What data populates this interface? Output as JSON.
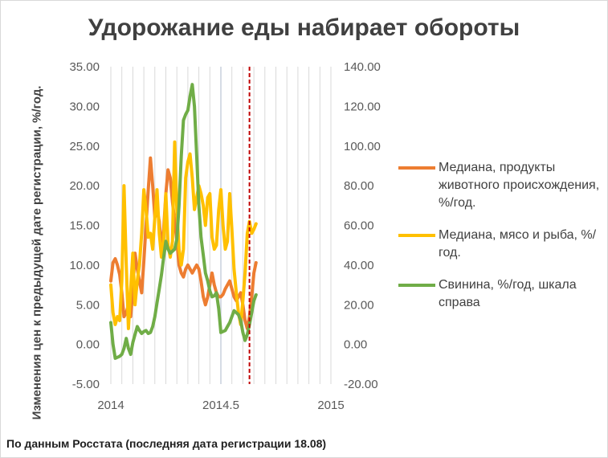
{
  "page": {
    "title": "Удорожание еды набирает обороты",
    "footer": "По данным Росстата (последняя дата регистрации 18.08)"
  },
  "chart_data": {
    "type": "line",
    "title": "Удорожание еды набирает обороты",
    "ylabel": "Изменения цен к предыдущей дате регистрации, %/год.",
    "xlim": [
      2014,
      2015
    ],
    "ylim": [
      -5,
      35
    ],
    "y2lim": [
      -20,
      140
    ],
    "x_ticks": [
      "2014",
      "2014.5",
      "2015"
    ],
    "y_ticks": [
      "-5.00",
      "0.00",
      "5.00",
      "10.00",
      "15.00",
      "20.00",
      "25.00",
      "30.00",
      "35.00"
    ],
    "y2_ticks": [
      "-20.00",
      "0.00",
      "20.00",
      "40.00",
      "60.00",
      "80.00",
      "100.00",
      "120.00",
      "140.00"
    ],
    "grid": "vertical",
    "legend_position": "right",
    "vline": {
      "x": 0.63,
      "style": "dashed",
      "color": "#c00000"
    },
    "colors": {
      "grid": "#d9d9d9",
      "highlight_grid": "#d6dce5"
    },
    "series": [
      {
        "name": "Медиана, продукты животного происхождения, %/год.",
        "axis": "left",
        "color": "#ed7d31",
        "x": [
          0,
          0.01,
          0.02,
          0.03,
          0.04,
          0.05,
          0.06,
          0.07,
          0.08,
          0.09,
          0.1,
          0.11,
          0.12,
          0.13,
          0.14,
          0.15,
          0.16,
          0.17,
          0.18,
          0.19,
          0.2,
          0.21,
          0.22,
          0.23,
          0.24,
          0.25,
          0.26,
          0.27,
          0.28,
          0.29,
          0.3,
          0.31,
          0.32,
          0.33,
          0.34,
          0.35,
          0.36,
          0.37,
          0.38,
          0.39,
          0.4,
          0.41,
          0.42,
          0.43,
          0.44,
          0.45,
          0.46,
          0.47,
          0.48,
          0.49,
          0.5,
          0.51,
          0.52,
          0.53,
          0.54,
          0.55,
          0.56,
          0.57,
          0.58,
          0.59,
          0.6,
          0.61,
          0.62,
          0.63,
          0.64,
          0.65,
          0.66
        ],
        "values": [
          8.0,
          10.3,
          10.8,
          10.0,
          8.8,
          6.5,
          3.5,
          4.0,
          5.0,
          3.5,
          7.0,
          11.5,
          9.5,
          8.0,
          6.5,
          10.5,
          15.0,
          19.5,
          23.5,
          20.0,
          16.0,
          17.0,
          15.5,
          12.0,
          14.5,
          19.0,
          22.0,
          21.0,
          18.0,
          15.5,
          13.0,
          10.0,
          9.0,
          8.5,
          9.5,
          10.0,
          9.5,
          9.0,
          9.5,
          10.0,
          9.5,
          8.0,
          6.0,
          5.0,
          6.0,
          7.5,
          9.0,
          7.5,
          6.5,
          6.0,
          6.0,
          6.3,
          7.0,
          7.5,
          8.0,
          7.0,
          6.0,
          5.5,
          6.0,
          6.5,
          5.0,
          3.0,
          2.0,
          3.5,
          6.0,
          9.0,
          10.3
        ]
      },
      {
        "name": "Медиана, мясо и рыба, %/год.",
        "axis": "left",
        "color": "#ffc000",
        "x": [
          0,
          0.01,
          0.02,
          0.03,
          0.04,
          0.05,
          0.06,
          0.07,
          0.08,
          0.09,
          0.1,
          0.11,
          0.12,
          0.13,
          0.14,
          0.15,
          0.16,
          0.17,
          0.18,
          0.19,
          0.2,
          0.21,
          0.22,
          0.23,
          0.24,
          0.25,
          0.26,
          0.27,
          0.28,
          0.29,
          0.3,
          0.31,
          0.32,
          0.33,
          0.34,
          0.35,
          0.36,
          0.37,
          0.38,
          0.39,
          0.4,
          0.41,
          0.42,
          0.43,
          0.44,
          0.45,
          0.46,
          0.47,
          0.48,
          0.49,
          0.5,
          0.51,
          0.52,
          0.53,
          0.54,
          0.55,
          0.56,
          0.57,
          0.58,
          0.59,
          0.6,
          0.61,
          0.62,
          0.63,
          0.64,
          0.65,
          0.66
        ],
        "values": [
          7.5,
          4.0,
          2.5,
          3.5,
          3.0,
          8.0,
          20.0,
          10.0,
          2.0,
          7.0,
          11.5,
          5.0,
          8.0,
          10.0,
          14.0,
          19.5,
          17.0,
          13.5,
          14.0,
          12.0,
          16.0,
          19.5,
          14.0,
          11.0,
          13.0,
          19.0,
          12.5,
          11.0,
          13.0,
          25.5,
          17.0,
          12.0,
          10.0,
          12.0,
          21.0,
          23.0,
          24.0,
          21.0,
          17.0,
          18.5,
          20.0,
          19.0,
          17.5,
          15.0,
          18.5,
          19.0,
          13.5,
          12.0,
          12.5,
          17.0,
          19.5,
          15.0,
          12.0,
          13.0,
          19.0,
          14.5,
          9.5,
          6.5,
          4.0,
          2.5,
          5.5,
          9.0,
          14.0,
          15.5,
          14.0,
          14.5,
          15.2
        ]
      },
      {
        "name": "Свинина, %/год, шкала справа",
        "axis": "right",
        "color": "#70ad47",
        "x": [
          0,
          0.01,
          0.02,
          0.03,
          0.04,
          0.05,
          0.06,
          0.07,
          0.08,
          0.09,
          0.1,
          0.11,
          0.12,
          0.13,
          0.14,
          0.15,
          0.16,
          0.17,
          0.18,
          0.19,
          0.2,
          0.21,
          0.22,
          0.23,
          0.24,
          0.25,
          0.26,
          0.27,
          0.28,
          0.29,
          0.3,
          0.31,
          0.32,
          0.33,
          0.34,
          0.35,
          0.36,
          0.37,
          0.38,
          0.39,
          0.4,
          0.41,
          0.42,
          0.43,
          0.44,
          0.45,
          0.46,
          0.47,
          0.48,
          0.49,
          0.5,
          0.51,
          0.52,
          0.53,
          0.54,
          0.55,
          0.56,
          0.57,
          0.58,
          0.59,
          0.6,
          0.61,
          0.62,
          0.63,
          0.64,
          0.65,
          0.66
        ],
        "values": [
          11.0,
          0.0,
          -7.0,
          -6.5,
          -6.0,
          -5.0,
          -2.0,
          3.0,
          -2.0,
          -5.0,
          1.0,
          5.0,
          9.0,
          7.0,
          5.5,
          6.5,
          7.0,
          5.5,
          6.0,
          9.0,
          14.0,
          21.0,
          28.0,
          35.0,
          44.0,
          52.0,
          48.0,
          46.0,
          47.0,
          48.0,
          53.0,
          70.0,
          95.0,
          113.0,
          116.0,
          118.0,
          125.0,
          131.0,
          120.0,
          95.0,
          70.0,
          54.0,
          45.0,
          36.0,
          32.0,
          27.0,
          24.0,
          24.5,
          26.0,
          18.0,
          6.0,
          6.5,
          7.0,
          9.0,
          11.0,
          14.0,
          17.0,
          16.0,
          15.0,
          12.0,
          6.0,
          2.0,
          5.0,
          10.0,
          16.0,
          22.0,
          25.0
        ]
      }
    ]
  }
}
